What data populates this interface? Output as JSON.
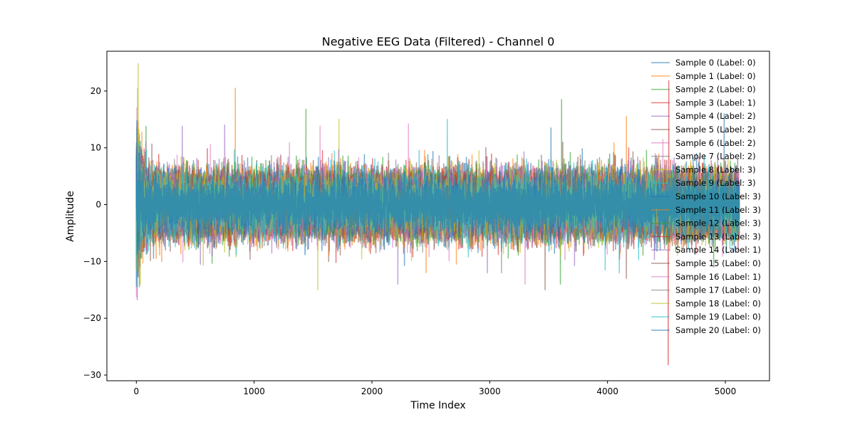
{
  "chart_data": {
    "type": "line",
    "title": "Negative EEG Data (Filtered) - Channel 0",
    "xlabel": "Time Index",
    "ylabel": "Amplitude",
    "xlim": [
      -250,
      5375
    ],
    "ylim": [
      -31,
      27
    ],
    "xticks": [
      0,
      1000,
      2000,
      3000,
      4000,
      5000
    ],
    "xtick_labels": [
      "0",
      "1000",
      "2000",
      "3000",
      "4000",
      "5000"
    ],
    "yticks": [
      -30,
      -20,
      -10,
      0,
      10,
      20
    ],
    "ytick_labels": [
      "−30",
      "−20",
      "−10",
      "0",
      "10",
      "20"
    ],
    "n_points": 5120,
    "grid": false,
    "legend_position": "top-right",
    "series_alpha": 0.6,
    "series": [
      {
        "name": "Sample 0 (Label: 0)",
        "color": "#1f77b4",
        "std": 2.6,
        "spikes": [
          [
            4990,
            16
          ]
        ]
      },
      {
        "name": "Sample 1 (Label: 0)",
        "color": "#ff7f0e",
        "std": 2.8,
        "spikes": [
          [
            840,
            20.5
          ],
          [
            4160,
            15.5
          ],
          [
            1660,
            9
          ],
          [
            1540,
            -8
          ]
        ]
      },
      {
        "name": "Sample 2 (Label: 0)",
        "color": "#2ca02c",
        "std": 2.6,
        "spikes": [
          [
            1440,
            16.8
          ],
          [
            3610,
            18.5
          ],
          [
            3600,
            -14
          ]
        ]
      },
      {
        "name": "Sample 3 (Label: 1)",
        "color": "#d62728",
        "std": 2.6,
        "spikes": [
          [
            4520,
            21.8
          ],
          [
            4515,
            -28.2
          ],
          [
            4180,
            10
          ]
        ]
      },
      {
        "name": "Sample 4 (Label: 2)",
        "color": "#9467bd",
        "std": 2.7,
        "spikes": [
          [
            390,
            13.8
          ],
          [
            750,
            14
          ],
          [
            2220,
            -14
          ],
          [
            2980,
            -12
          ]
        ]
      },
      {
        "name": "Sample 5 (Label: 2)",
        "color": "#8c564b",
        "std": 2.6,
        "spikes": [
          [
            3470,
            -15
          ],
          [
            4160,
            -13
          ]
        ]
      },
      {
        "name": "Sample 6 (Label: 2)",
        "color": "#e377c2",
        "std": 2.6,
        "spikes": [
          [
            1560,
            -20.3
          ],
          [
            1560,
            13.8
          ],
          [
            2310,
            14.2
          ],
          [
            4470,
            11.5
          ]
        ]
      },
      {
        "name": "Sample 7 (Label: 2)",
        "color": "#7f7f7f",
        "std": 2.5,
        "spikes": [
          [
            3100,
            -12
          ]
        ]
      },
      {
        "name": "Sample 8 (Label: 3)",
        "color": "#bcbd22",
        "std": 2.6,
        "spikes": [
          [
            15,
            24.8
          ],
          [
            1540,
            -15
          ],
          [
            1720,
            15
          ]
        ]
      },
      {
        "name": "Sample 9 (Label: 3)",
        "color": "#17becf",
        "std": 2.6,
        "spikes": [
          [
            2640,
            15
          ],
          [
            3980,
            -11.5
          ]
        ]
      },
      {
        "name": "Sample 10 (Label: 3)",
        "color": "#1f77b4",
        "std": 2.5,
        "spikes": [
          [
            3520,
            13.5
          ]
        ]
      },
      {
        "name": "Sample 11 (Label: 3)",
        "color": "#ff7f0e",
        "std": 2.6,
        "spikes": [
          [
            2460,
            -12
          ]
        ]
      },
      {
        "name": "Sample 12 (Label: 3)",
        "color": "#2ca02c",
        "std": 2.5,
        "spikes": []
      },
      {
        "name": "Sample 13 (Label: 3)",
        "color": "#d62728",
        "std": 2.5,
        "spikes": []
      },
      {
        "name": "Sample 14 (Label: 1)",
        "color": "#9467bd",
        "std": 2.5,
        "spikes": [
          [
            5,
            -14.5
          ]
        ]
      },
      {
        "name": "Sample 15 (Label: 0)",
        "color": "#8c564b",
        "std": 2.5,
        "spikes": [
          [
            3620,
            11
          ]
        ]
      },
      {
        "name": "Sample 16 (Label: 1)",
        "color": "#e377c2",
        "std": 2.5,
        "spikes": [
          [
            3300,
            -14
          ]
        ]
      },
      {
        "name": "Sample 17 (Label: 0)",
        "color": "#7f7f7f",
        "std": 2.5,
        "spikes": []
      },
      {
        "name": "Sample 18 (Label: 0)",
        "color": "#bcbd22",
        "std": 2.5,
        "spikes": [
          [
            10,
            20.5
          ]
        ]
      },
      {
        "name": "Sample 19 (Label: 0)",
        "color": "#17becf",
        "std": 2.5,
        "spikes": [
          [
            4100,
            -12
          ]
        ]
      },
      {
        "name": "Sample 20 (Label: 0)",
        "color": "#1f77b4",
        "std": 2.4,
        "spikes": [
          [
            5,
            14.8
          ]
        ]
      }
    ]
  }
}
